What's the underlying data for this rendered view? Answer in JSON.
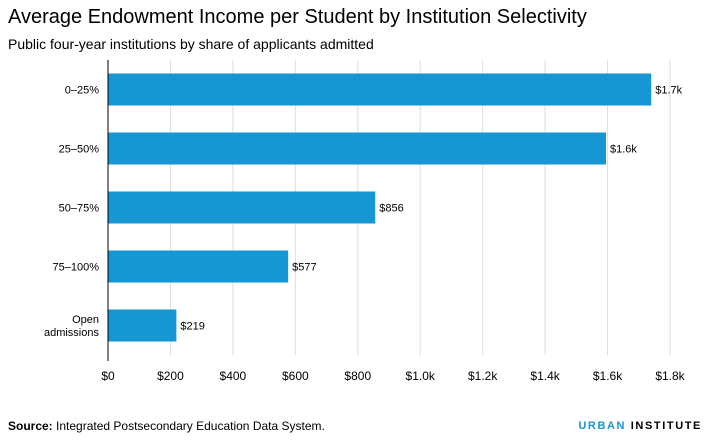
{
  "header": {
    "title": "Average Endowment Income per Student by Institution Selectivity",
    "subtitle": "Public four-year institutions by share of applicants admitted"
  },
  "footer": {
    "source_label": "Source:",
    "source_text": " Integrated Postsecondary Education Data System.",
    "logo_part1": "URBAN",
    "logo_part2": "INSTITUTE"
  },
  "colors": {
    "bar": "#1696d2",
    "brand": "#1696d2",
    "grid": "#dedddd"
  },
  "chart_data": {
    "type": "bar",
    "orientation": "horizontal",
    "title": "Average Endowment Income per Student by Institution Selectivity",
    "subtitle": "Public four-year institutions by share of applicants admitted",
    "categories": [
      [
        "0–25%"
      ],
      [
        "25–50%"
      ],
      [
        "50–75%"
      ],
      [
        "75–100%"
      ],
      [
        "Open",
        "admissions"
      ]
    ],
    "values": [
      1740,
      1595,
      856,
      577,
      219
    ],
    "data_labels": [
      "$1.7k",
      "$1.6k",
      "$856",
      "$577",
      "$219"
    ],
    "xlim": [
      0,
      1800
    ],
    "xticks": [
      0,
      200,
      400,
      600,
      800,
      1000,
      1200,
      1400,
      1600,
      1800
    ],
    "xtick_labels": [
      "$0",
      "$200",
      "$400",
      "$600",
      "$800",
      "$1.0k",
      "$1.2k",
      "$1.4k",
      "$1.6k",
      "$1.8k"
    ],
    "xlabel": "",
    "ylabel": "",
    "grid": "vertical",
    "legend": "none"
  }
}
